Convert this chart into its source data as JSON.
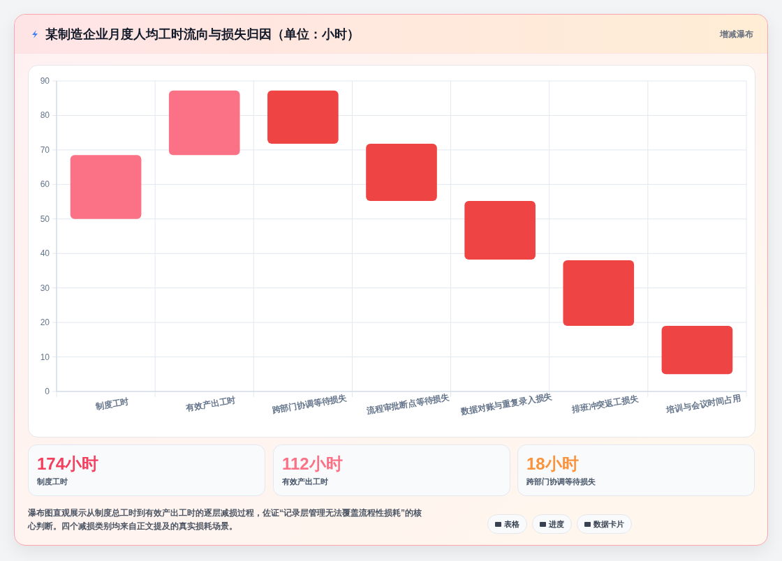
{
  "chart_data": [
    {
      "type": "bar",
      "title": "某制造企业月度人均工时流向与损失归因（单位：小时）",
      "subtitle": "增减瀑布",
      "categories": [
        "制度工时",
        "有效产出工时",
        "跨部门协调等待损失",
        "流程审批断点等待损失",
        "数据对账与重复录入损失",
        "排班冲突返工损失",
        "培训与会议时间占用"
      ],
      "values": [
        18.5,
        18.7,
        15.4,
        16.6,
        17,
        19,
        14
      ],
      "base": [
        50,
        68.5,
        71.8,
        55.2,
        38.2,
        19,
        5
      ],
      "colors": [
        "#fb7185",
        "#fb7185",
        "#ef4444",
        "#ef4444",
        "#ef4444",
        "#ef4444",
        "#ef4444"
      ],
      "ylim": [
        0,
        90
      ],
      "yticks": [
        0,
        10,
        20,
        30,
        40,
        50,
        60,
        70,
        80,
        90
      ],
      "grid": true
    },
    {
      "type": "other",
      "annotations": [
        "174小时",
        "制度工时",
        "112小时",
        "有效产出工时",
        "18小时",
        "跨部门协调等待损失",
        "瀑布图直观展示从制度总工时到有效产出工时的逐层减损过程，佐证“记录层管理无法覆盖流程性损耗”的核心判断。四个减损类别均来自正文提及的真实损耗场景。",
        "表格",
        "进度",
        "数据卡片"
      ]
    }
  ]
}
